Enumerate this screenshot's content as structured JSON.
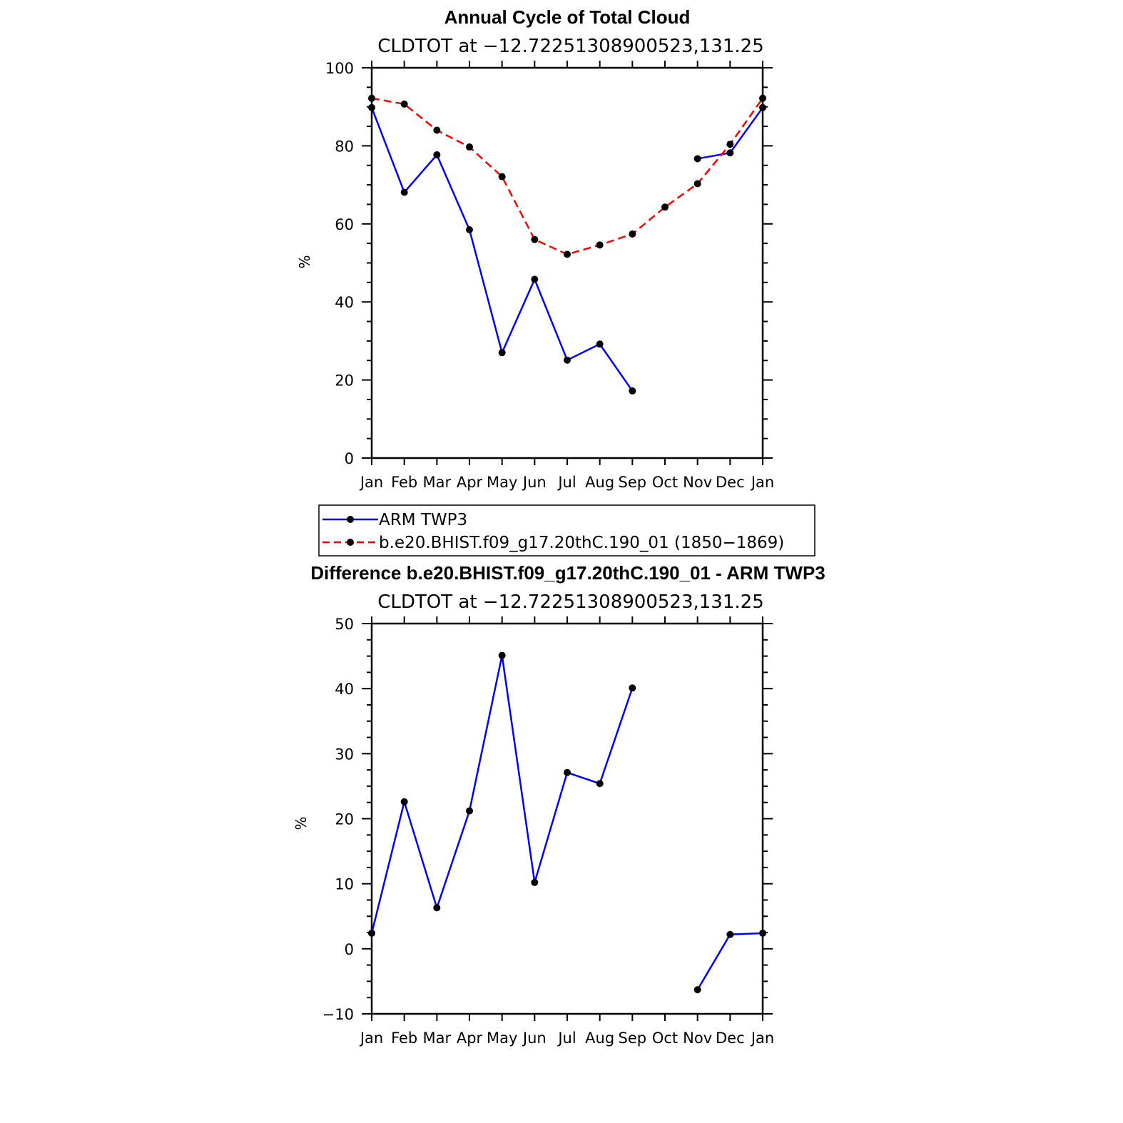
{
  "chart_data": [
    {
      "type": "line",
      "title": "Annual Cycle of Total Cloud",
      "subtitle": "CLDTOT at −12.72251308900523,131.25",
      "ylabel": "%",
      "xlabel": "",
      "ylim": [
        0,
        100
      ],
      "yticks": [
        0,
        20,
        40,
        60,
        80,
        100
      ],
      "categories": [
        "Jan",
        "Feb",
        "Mar",
        "Apr",
        "May",
        "Jun",
        "Jul",
        "Aug",
        "Sep",
        "Oct",
        "Nov",
        "Dec",
        "Jan"
      ],
      "series": [
        {
          "name": "ARM TWP3",
          "color": "#0000ff",
          "dash": "solid",
          "values": [
            89.8,
            68.1,
            77.7,
            58.5,
            27.0,
            45.8,
            25.1,
            29.2,
            17.2,
            null,
            76.7,
            78.2,
            89.8
          ]
        },
        {
          "name": "b.e20.BHIST.f09_g17.20thC.190_01 (1850−1869)",
          "color": "#ff0000",
          "dash": "dashed",
          "values": [
            92.2,
            90.7,
            84.0,
            79.7,
            72.1,
            56.0,
            52.2,
            54.6,
            57.4,
            64.3,
            70.3,
            80.4,
            92.2
          ]
        }
      ]
    },
    {
      "type": "line",
      "title": "Difference b.e20.BHIST.f09_g17.20thC.190_01 - ARM TWP3",
      "subtitle": "CLDTOT at −12.72251308900523,131.25",
      "ylabel": "%",
      "xlabel": "",
      "ylim": [
        -10,
        50
      ],
      "yticks": [
        -10,
        0,
        10,
        20,
        30,
        40,
        50
      ],
      "categories": [
        "Jan",
        "Feb",
        "Mar",
        "Apr",
        "May",
        "Jun",
        "Jul",
        "Aug",
        "Sep",
        "Oct",
        "Nov",
        "Dec",
        "Jan"
      ],
      "series": [
        {
          "color": "#0000ff",
          "dash": "solid",
          "values": [
            2.4,
            22.6,
            6.3,
            21.2,
            45.1,
            10.2,
            27.1,
            25.4,
            40.1,
            null,
            -6.3,
            2.2,
            2.4
          ]
        }
      ]
    }
  ]
}
